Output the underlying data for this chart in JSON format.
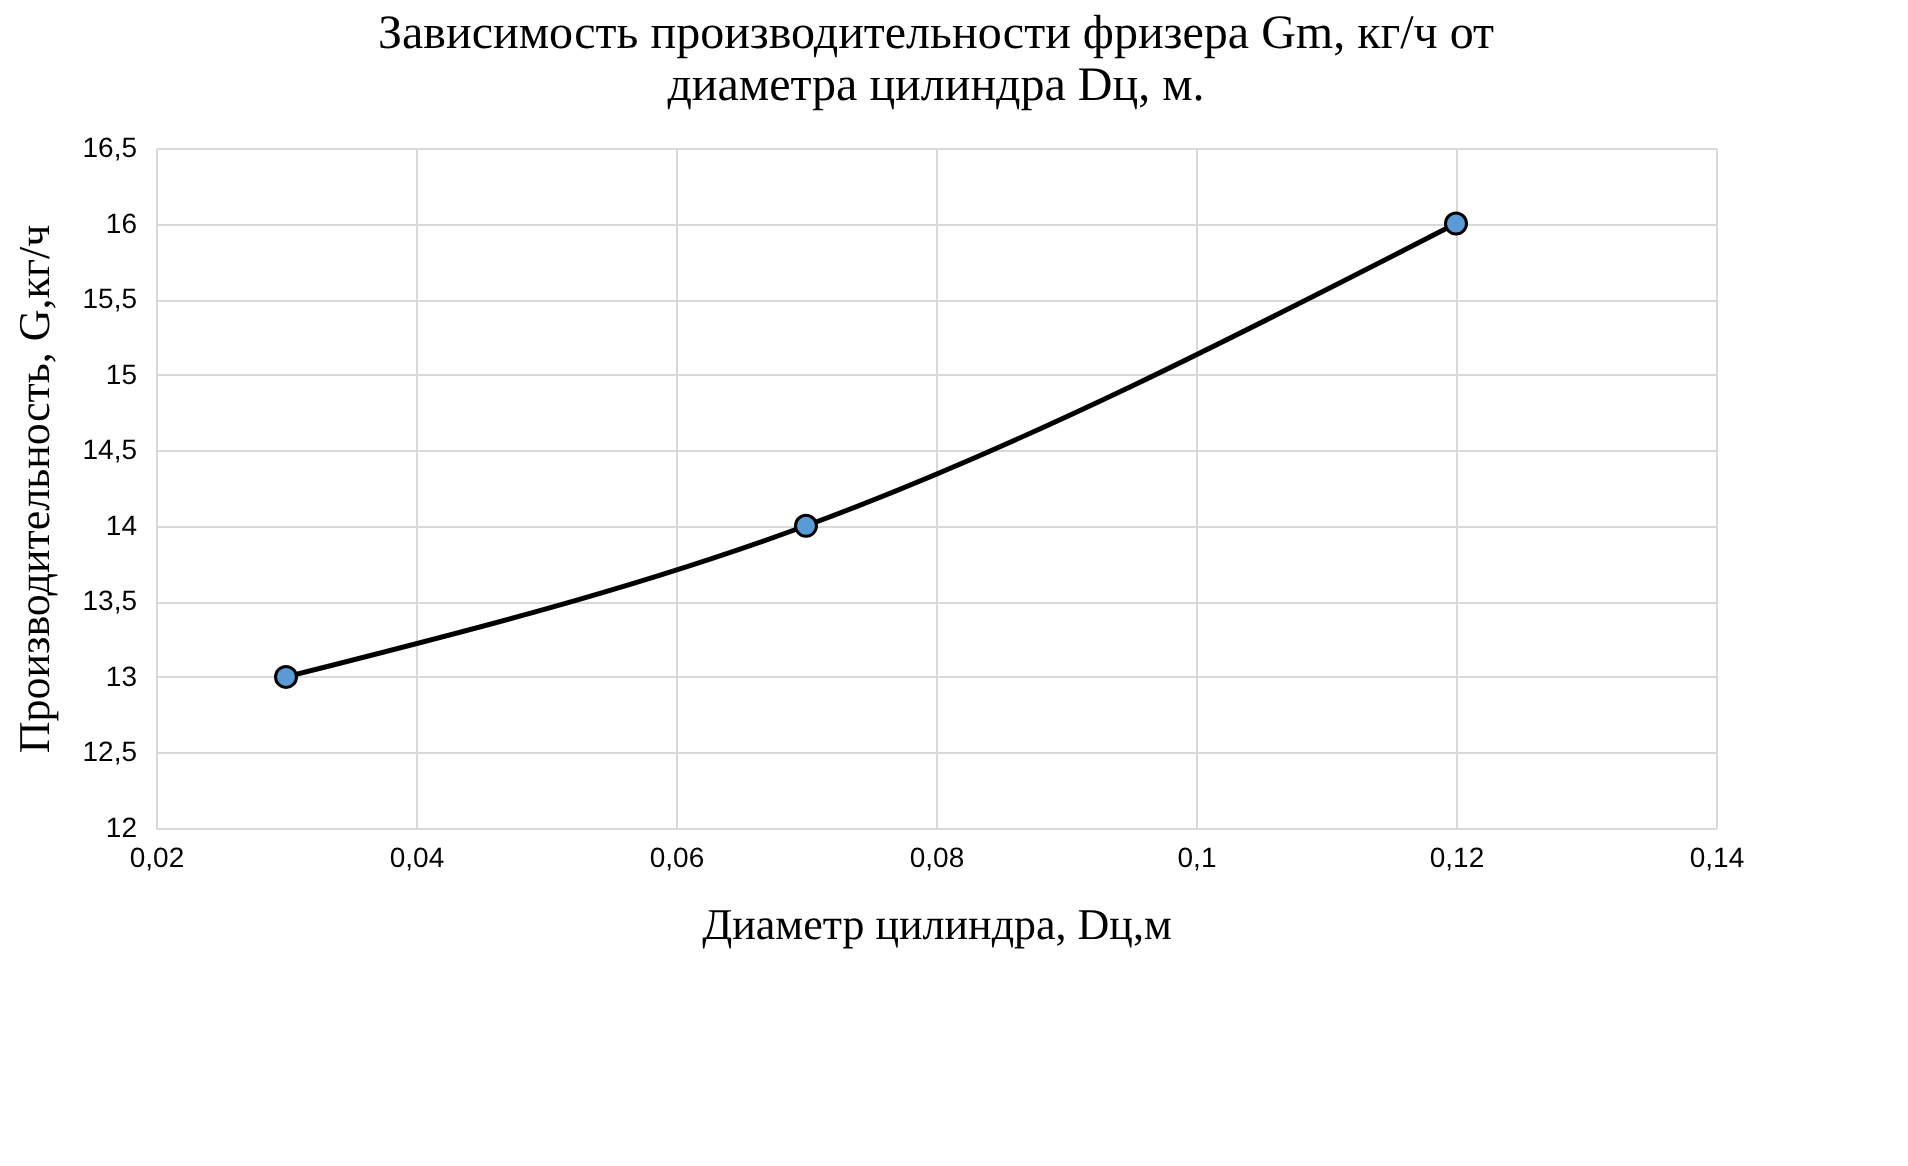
{
  "chart_data": {
    "type": "line",
    "title": "Зависимость производительности фризера Gm, кг/ч от\nдиаметра цилиндра Dц, м.",
    "xlabel": "Диаметр цилиндра, Dц,м",
    "ylabel": "Производительность, G,кг/ч",
    "x": [
      0.03,
      0.07,
      0.12
    ],
    "series": [
      {
        "color": "#000000",
        "values": [
          13,
          14,
          16
        ]
      }
    ],
    "marker": "circle",
    "line_style": "solid",
    "grid": true,
    "xlim": [
      0.02,
      0.14
    ],
    "xticks": [
      {
        "value": 0.02,
        "label": "0,02"
      },
      {
        "value": 0.04,
        "label": "0,04"
      },
      {
        "value": 0.06,
        "label": "0,06"
      },
      {
        "value": 0.08,
        "label": "0,08"
      },
      {
        "value": 0.1,
        "label": "0,1"
      },
      {
        "value": 0.12,
        "label": "0,12"
      },
      {
        "value": 0.14,
        "label": "0,14"
      }
    ],
    "ylim": [
      12,
      16.5
    ],
    "yticks": [
      12,
      {
        "value": 12.5,
        "label": "12,5"
      },
      13,
      {
        "value": 13.5,
        "label": "13,5"
      },
      14,
      {
        "value": 14.5,
        "label": "14,5"
      },
      15,
      {
        "value": 15.5,
        "label": "15,5"
      },
      16,
      {
        "value": 16.5,
        "label": "16,5"
      }
    ]
  }
}
